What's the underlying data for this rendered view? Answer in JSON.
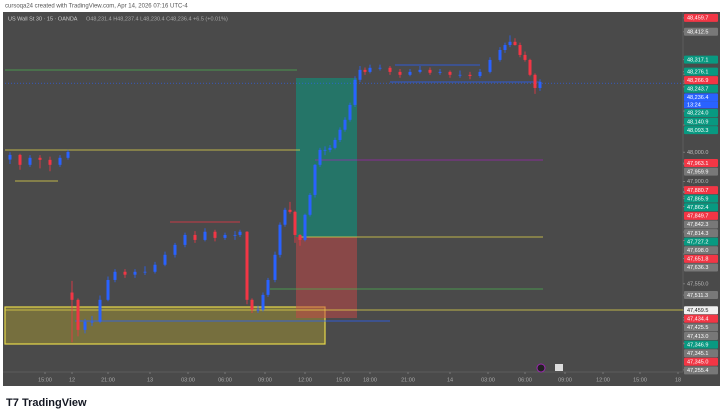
{
  "chart_data": {
    "type": "candlestick",
    "header": "cursoqa24 created with TradingView.com, Apr 14, 2026 07:16 UTC-4",
    "symbol": "US Wall St 30 · 15 · OANDA",
    "ohlc_legend": "O48,231.4 H48,237.4 L48,230.4 C48,236.4 +6.5 (+0.01%)",
    "brand": "TradingView",
    "countdown": "13:24",
    "up_color": "#2962ff",
    "down_color": "#f23645",
    "x": [
      0.5,
      1.5,
      2.5,
      3.5,
      4.5,
      5.5,
      6.3,
      6.7,
      7.3,
      8,
      8.7,
      9.5,
      10.3,
      11,
      12,
      13,
      14,
      15,
      16,
      17,
      18,
      19,
      20,
      21,
      22,
      23,
      23.5,
      24.2,
      24.7,
      25.3,
      25.8,
      26.3,
      27,
      27.5,
      28,
      28.5,
      29,
      29.5,
      30,
      30.5,
      31,
      31.5,
      32,
      32.5,
      33,
      33.5,
      34,
      34.5,
      35,
      35.5,
      36,
      36.5,
      37.5,
      38.5,
      39.5,
      40.5,
      41.5,
      42.5,
      43.5,
      44.5,
      45.5,
      46.5,
      47.5,
      48.5,
      49.5,
      50,
      50.5,
      51,
      51.5,
      52,
      52.5,
      53,
      53.5
    ],
    "open": [
      47975,
      47991,
      47957,
      47981,
      47974,
      47957,
      47981,
      47520,
      47495,
      47392,
      47420,
      47420,
      47495,
      47563,
      47591,
      47581,
      47591,
      47591,
      47615,
      47649,
      47683,
      47717,
      47700,
      47728,
      47707,
      47717,
      47717,
      47728,
      47495,
      47461,
      47461,
      47512,
      47563,
      47649,
      47752,
      47803,
      47796,
      47717,
      47700,
      47786,
      47854,
      47957,
      48008,
      48008,
      48015,
      48042,
      48077,
      48111,
      48162,
      48248,
      48282,
      48275,
      48289,
      48289,
      48275,
      48265,
      48275,
      48282,
      48272,
      48275,
      48265,
      48265,
      48261,
      48275,
      48316,
      48350,
      48367,
      48378,
      48367,
      48333,
      48316,
      48265,
      48220
    ],
    "high": [
      48000,
      47995,
      47990,
      47990,
      47985,
      47990,
      48008,
      47560,
      47500,
      47430,
      47440,
      47510,
      47575,
      47600,
      47600,
      47600,
      47610,
      47625,
      47660,
      47690,
      47725,
      47730,
      47740,
      47735,
      47725,
      47730,
      47735,
      47730,
      47500,
      47475,
      47520,
      47570,
      47660,
      47760,
      47810,
      47830,
      47800,
      47720,
      47790,
      47860,
      47960,
      48015,
      48020,
      48025,
      48050,
      48085,
      48120,
      48170,
      48260,
      48295,
      48290,
      48300,
      48300,
      48295,
      48285,
      48285,
      48295,
      48290,
      48285,
      48280,
      48280,
      48275,
      48285,
      48325,
      48360,
      48375,
      48400,
      48390,
      48375,
      48345,
      48320,
      48270,
      48250
    ],
    "low": [
      47960,
      47940,
      47950,
      47945,
      47935,
      47950,
      47975,
      47350,
      47370,
      47380,
      47405,
      47415,
      47490,
      47555,
      47570,
      47570,
      47580,
      47585,
      47610,
      47640,
      47675,
      47690,
      47695,
      47695,
      47700,
      47700,
      47710,
      47480,
      47450,
      47450,
      47455,
      47505,
      47555,
      47640,
      47745,
      47790,
      47690,
      47680,
      47695,
      47780,
      47845,
      47950,
      47990,
      48000,
      48010,
      48035,
      48070,
      48105,
      48155,
      48240,
      48265,
      48270,
      48280,
      48265,
      48255,
      48260,
      48270,
      48265,
      48265,
      48255,
      48255,
      48250,
      48255,
      48270,
      48310,
      48340,
      48360,
      48365,
      48325,
      48310,
      48260,
      48200,
      48210
    ],
    "close": [
      47991,
      47957,
      47981,
      47974,
      47957,
      47981,
      48001,
      47495,
      47392,
      47420,
      47420,
      47495,
      47563,
      47591,
      47581,
      47591,
      47591,
      47615,
      47649,
      47683,
      47717,
      47700,
      47728,
      47707,
      47717,
      47717,
      47728,
      47495,
      47461,
      47461,
      47512,
      47563,
      47649,
      47752,
      47803,
      47796,
      47717,
      47700,
      47786,
      47854,
      47957,
      48008,
      48008,
      48015,
      48042,
      48077,
      48111,
      48162,
      48248,
      48282,
      48275,
      48289,
      48289,
      48275,
      48265,
      48275,
      48282,
      48272,
      48275,
      48265,
      48265,
      48261,
      48275,
      48316,
      48350,
      48367,
      48378,
      48367,
      48333,
      48316,
      48265,
      48220,
      48241
    ],
    "xlim": [
      0,
      67.8
    ],
    "xticks": [
      {
        "value": 4,
        "label": "15:00"
      },
      {
        "value": 6.7,
        "label": "12"
      },
      {
        "value": 10.3,
        "label": "21:00"
      },
      {
        "value": 14.5,
        "label": "13"
      },
      {
        "value": 18.3,
        "label": "03:00"
      },
      {
        "value": 22,
        "label": "06:00"
      },
      {
        "value": 26,
        "label": "09:00"
      },
      {
        "value": 30,
        "label": "12:00"
      },
      {
        "value": 33.8,
        "label": "15:00"
      },
      {
        "value": 36.5,
        "label": "18:00"
      },
      {
        "value": 40.3,
        "label": "21:00"
      },
      {
        "value": 44.5,
        "label": "14"
      },
      {
        "value": 48.3,
        "label": "03:00"
      },
      {
        "value": 52,
        "label": "06:00"
      },
      {
        "value": 56,
        "label": "09:00"
      },
      {
        "value": 59.8,
        "label": "12:00"
      },
      {
        "value": 63.5,
        "label": "15:00"
      },
      {
        "value": 67.3,
        "label": "18"
      }
    ],
    "ylim": [
      47248,
      48480
    ],
    "yticks": [
      {
        "value": 48459.7,
        "label": "48,459.7"
      },
      {
        "value": 48412.5,
        "label": "48,412.5"
      },
      {
        "value": 48317.1,
        "label": "48,317.1"
      },
      {
        "value": 48276.1,
        "label": "48,276.1"
      },
      {
        "value": 48266.9,
        "label": "48,266.9"
      },
      {
        "value": 48243.7,
        "label": "48,243.7"
      },
      {
        "value": 48236.4,
        "label": "48,236.4"
      },
      {
        "value": 48224,
        "label": "48,224.0"
      },
      {
        "value": 48140.9,
        "label": "48,140.9"
      },
      {
        "value": 48093.3,
        "label": "48,093.3"
      },
      {
        "value": 48000,
        "label": "48,000.0"
      },
      {
        "value": 47963.1,
        "label": "47,963.1"
      },
      {
        "value": 47959.9,
        "label": "47,959.9"
      },
      {
        "value": 47900,
        "label": "47,900.0"
      },
      {
        "value": 47880.7,
        "label": "47,880.7"
      },
      {
        "value": 47865.9,
        "label": "47,865.9"
      },
      {
        "value": 47862.4,
        "label": "47,862.4"
      },
      {
        "value": 47849.7,
        "label": "47,849.7"
      },
      {
        "value": 47842.3,
        "label": "47,842.3"
      },
      {
        "value": 47814.3,
        "label": "47,814.3"
      },
      {
        "value": 47727.2,
        "label": "47,727.2"
      },
      {
        "value": 47698,
        "label": "47,698.0"
      },
      {
        "value": 47651.8,
        "label": "47,651.8"
      },
      {
        "value": 47636.3,
        "label": "47,636.3"
      },
      {
        "value": 47550,
        "label": "47,550.0"
      },
      {
        "value": 47511.3,
        "label": "47,511.3"
      },
      {
        "value": 47459.5,
        "label": "47,459.5"
      },
      {
        "value": 47434.4,
        "label": "47,434.4"
      },
      {
        "value": 47425.5,
        "label": "47,425.5"
      },
      {
        "value": 47413,
        "label": "47,413.0"
      },
      {
        "value": 47346.9,
        "label": "47,346.9"
      },
      {
        "value": 47345.1,
        "label": "47,345.1"
      },
      {
        "value": 47345,
        "label": "47,345.0"
      },
      {
        "value": 47255.4,
        "label": "47,255.4"
      }
    ],
    "ytick_colors": [
      "#f23645",
      "#787878",
      "#089981",
      "#089981",
      "#f23645",
      "#089981",
      "#2962ff",
      "#089981",
      "#089981",
      "#089981",
      "transparent",
      "#f23645",
      "#787878",
      "transparent",
      "#f23645",
      "#089981",
      "#089981",
      "#f23645",
      "#787878",
      "#787878",
      "#089981",
      "#787878",
      "#f23645",
      "#787878",
      "transparent",
      "#787878",
      "#f0f0f0",
      "#f23645",
      "#787878",
      "#787878",
      "#089981",
      "#787878",
      "#f23645",
      "#787878"
    ],
    "grid": false
  }
}
